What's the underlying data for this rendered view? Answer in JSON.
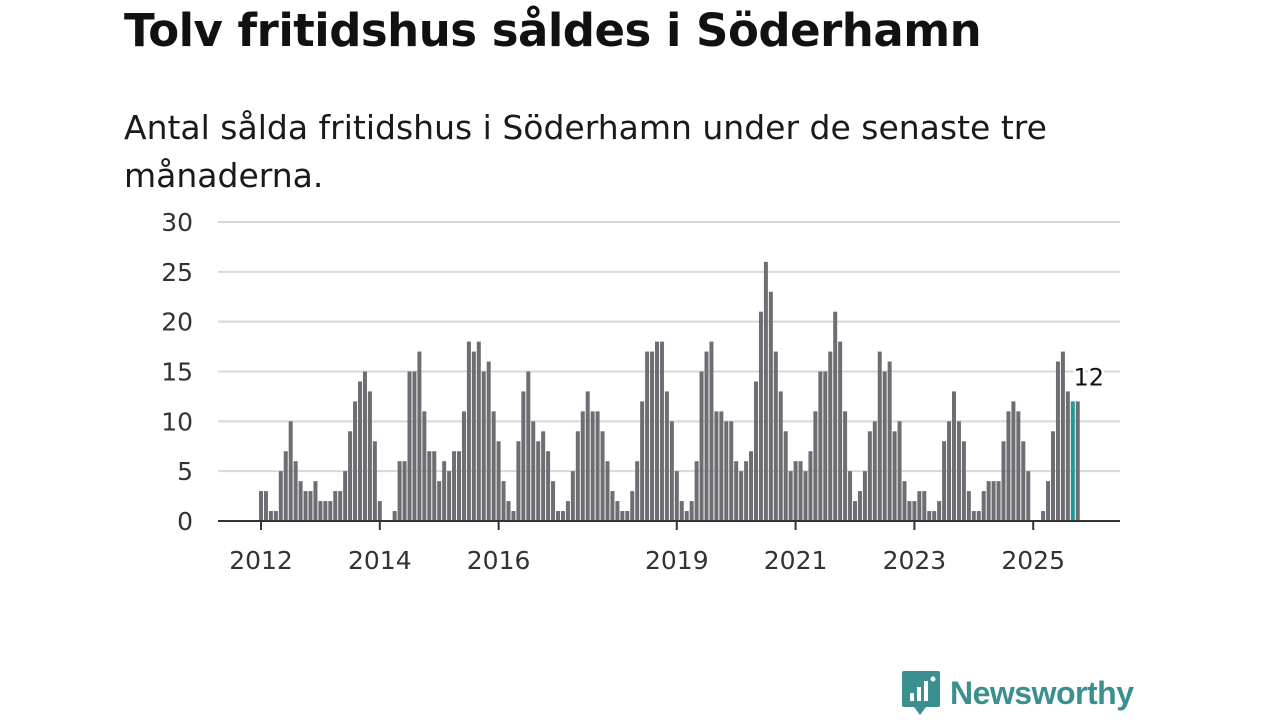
{
  "chart_data": {
    "type": "bar",
    "title": "Tolv fritidshus såldes i Söderhamn",
    "subtitle": "Antal sålda fritidshus i Söderhamn under de senaste tre månaderna.",
    "ylim": [
      0,
      30
    ],
    "yticks": [
      0,
      5,
      10,
      15,
      20,
      25,
      30
    ],
    "grid": true,
    "start": "2012-01",
    "values": [
      3,
      3,
      1,
      1,
      5,
      7,
      10,
      6,
      4,
      3,
      3,
      4,
      2,
      2,
      2,
      3,
      3,
      5,
      9,
      12,
      14,
      15,
      13,
      8,
      2,
      0,
      0,
      1,
      6,
      6,
      15,
      15,
      17,
      11,
      7,
      7,
      4,
      6,
      5,
      7,
      7,
      11,
      18,
      17,
      18,
      15,
      16,
      11,
      8,
      4,
      2,
      1,
      8,
      13,
      15,
      10,
      8,
      9,
      7,
      4,
      1,
      1,
      2,
      5,
      9,
      11,
      13,
      11,
      11,
      9,
      6,
      3,
      2,
      1,
      1,
      3,
      6,
      12,
      17,
      17,
      18,
      18,
      13,
      10,
      5,
      2,
      1,
      2,
      6,
      15,
      17,
      18,
      11,
      11,
      10,
      10,
      6,
      5,
      6,
      7,
      14,
      21,
      26,
      23,
      17,
      13,
      9,
      5,
      6,
      6,
      5,
      7,
      11,
      15,
      15,
      17,
      21,
      18,
      11,
      5,
      2,
      3,
      5,
      9,
      10,
      17,
      15,
      16,
      9,
      10,
      4,
      2,
      2,
      3,
      3,
      1,
      1,
      2,
      8,
      10,
      13,
      10,
      8,
      3,
      1,
      1,
      3,
      4,
      4,
      4,
      8,
      11,
      12,
      11,
      8,
      5,
      0,
      0,
      1,
      4,
      9,
      16,
      17,
      13,
      12,
      12
    ],
    "xticks": [
      {
        "label": "2012",
        "index": 0
      },
      {
        "label": "2014",
        "index": 24
      },
      {
        "label": "2016",
        "index": 48
      },
      {
        "label": "2019",
        "index": 84
      },
      {
        "label": "2021",
        "index": 108
      },
      {
        "label": "2023",
        "index": 132
      },
      {
        "label": "2025",
        "index": 156
      }
    ],
    "highlight_index": 164,
    "annotation": "12",
    "colors": {
      "bar": "#6e6d73",
      "highlight": "#1a9c98",
      "grid": "#d8d8d8",
      "axis": "#333333"
    }
  },
  "logo": {
    "text": "Newsworthy",
    "color": "#3b8f8f",
    "icon": "newsworthy-chart-icon"
  }
}
